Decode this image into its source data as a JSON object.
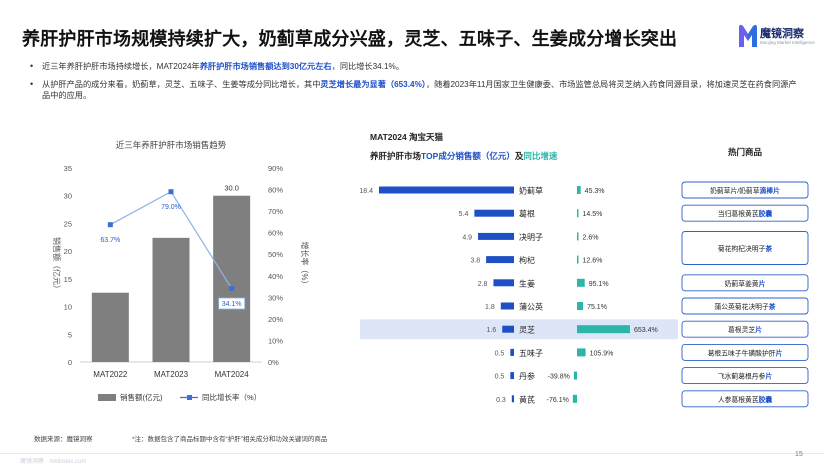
{
  "title": "养肝护肝市场规模持续扩大，奶蓟草成分兴盛，灵芝、五味子、生姜成分增长突出",
  "logo": {
    "name": "魔镜洞察",
    "sub": "Moojing Market Intelligence"
  },
  "bullets": [
    {
      "pre": "近三年养肝护肝市场持续增长，MAT2024年",
      "hl": "养肝护肝市场销售额达到30亿元左右",
      "post": "，同比增长34.1%。"
    },
    {
      "pre": "从护肝产品的成分来看，奶蓟草，灵芝、五味子、生姜等成分同比增长，其中",
      "hl": "灵芝增长最为显著（653.4%）",
      "post": "，随着2023年11月国家卫生健康委、市场监管总局将灵芝纳入药食同源目录，将加速灵芝在药食同源产品中的应用。"
    }
  ],
  "footer": {
    "source": "数据来源：魔镜洞察",
    "note": "*注：数据包含了商品标题中含有“护肝”相关成分和功效关键词的商品",
    "watermark": "魔镜洞察 · mktindex.com",
    "page": "15"
  },
  "colors": {
    "bar_gray": "#7f7f7f",
    "line_blue": "#3b6fd8",
    "bar_blue": "#1f4fc4",
    "bar_teal": "#2cb5a8",
    "highlight_row": "#dde6f6",
    "pill_border": "#2f61c9"
  },
  "chart_data": [
    {
      "type": "bar",
      "title": "近三年养肝护肝市场销售趋势",
      "categories": [
        "MAT2022",
        "MAT2023",
        "MAT2024"
      ],
      "series": [
        {
          "name": "销售额(亿元)",
          "type": "bar",
          "axis": "left",
          "values": [
            12.5,
            22.4,
            30.0
          ],
          "labels": [
            "",
            "",
            "30.0"
          ]
        },
        {
          "name": "同比增长率（%）",
          "type": "line",
          "axis": "right",
          "values": [
            63.7,
            79.0,
            34.1
          ],
          "labels": [
            "63.7%",
            "79.0%",
            "34.1%"
          ]
        }
      ],
      "ylabel": "销售额（亿元）",
      "y2label": "增长率（%）",
      "ylim": [
        0,
        35
      ],
      "y2lim": [
        0,
        90
      ],
      "yticks": [
        "0",
        "5",
        "10",
        "15",
        "20",
        "25",
        "30",
        "35"
      ],
      "y2ticks": [
        "0%",
        "10%",
        "20%",
        "30%",
        "40%",
        "50%",
        "60%",
        "70%",
        "80%",
        "90%"
      ],
      "grid": false,
      "legend": "bottom"
    },
    {
      "type": "bar",
      "orientation": "horizontal",
      "title_line1": "MAT2024 淘宝天猫",
      "title_line2_pre": "养肝护肝市场",
      "title_line2_hl": "TOP成分销售额（亿元）",
      "title_line2_mid": "及",
      "title_line2_hl2": "同比增速",
      "side_header": "热门商品",
      "highlight": "灵芝",
      "ingredients": [
        {
          "name": "奶蓟草",
          "sales": 18.4,
          "growth": 45.3,
          "growth_label": "45.3%",
          "product_pre": "奶蓟草片/奶蓟草",
          "product_hl": "滴棒片"
        },
        {
          "name": "葛根",
          "sales": 5.4,
          "growth": 14.5,
          "growth_label": "14.5%",
          "product_pre": "当归葛根黄芪",
          "product_hl": "胶囊"
        },
        {
          "name": "决明子",
          "sales": 4.9,
          "growth": 2.6,
          "growth_label": "2.6%",
          "product_pre": "菊花枸杞决明子",
          "product_hl": "茶"
        },
        {
          "name": "枸杞",
          "sales": 3.8,
          "growth": 12.6,
          "growth_label": "12.6%",
          "product_pre": "",
          "product_hl": ""
        },
        {
          "name": "生姜",
          "sales": 2.8,
          "growth": 95.1,
          "growth_label": "95.1%",
          "product_pre": "奶蓟草姜黄",
          "product_hl": "片"
        },
        {
          "name": "蒲公英",
          "sales": 1.8,
          "growth": 75.1,
          "growth_label": "75.1%",
          "product_pre": "蒲公英菊花决明子",
          "product_hl": "茶"
        },
        {
          "name": "灵芝",
          "sales": 1.6,
          "growth": 653.4,
          "growth_label": "653.4%",
          "product_pre": "葛根灵芝",
          "product_hl": "片"
        },
        {
          "name": "五味子",
          "sales": 0.5,
          "growth": 105.9,
          "growth_label": "105.9%",
          "product_pre": "葛根五味子牛磺酸护肝",
          "product_hl": "片"
        },
        {
          "name": "丹参",
          "sales": 0.5,
          "growth": -39.8,
          "growth_label": "-39.8%",
          "product_pre": "飞水蓟葛根丹参",
          "product_hl": "片"
        },
        {
          "name": "黄芪",
          "sales": 0.3,
          "growth": -76.1,
          "growth_label": "-76.1%",
          "product_pre": "人参葛根黄芪",
          "product_hl": "胶囊"
        }
      ]
    }
  ]
}
